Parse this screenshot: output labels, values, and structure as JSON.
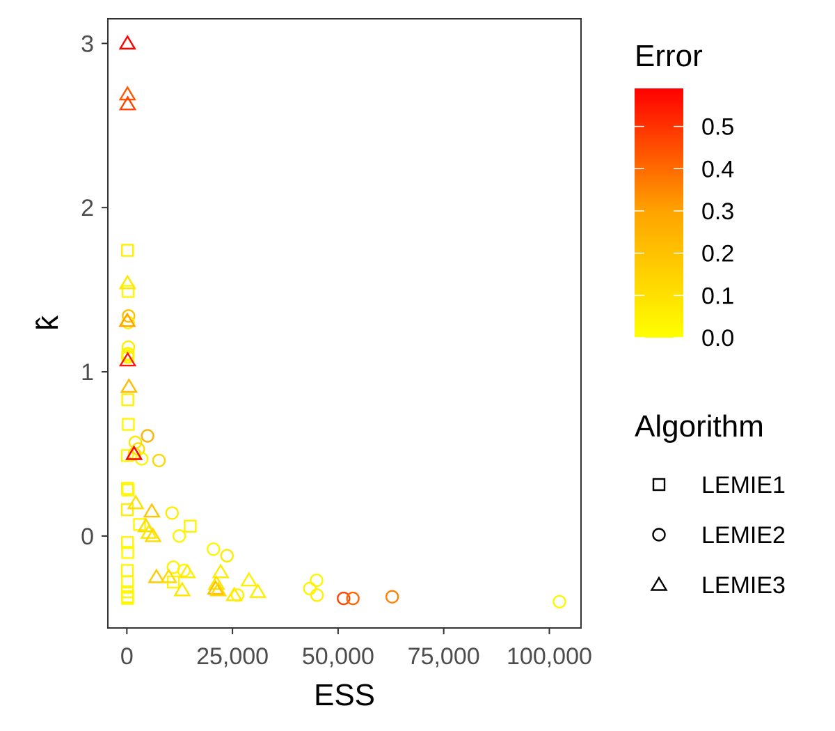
{
  "chart_data": {
    "type": "scatter",
    "xlabel": "ESS",
    "ylabel": "k̂",
    "xlim": [
      -4500,
      107500
    ],
    "ylim": [
      -0.56,
      3.15
    ],
    "x_ticks": [
      0,
      25000,
      50000,
      75000,
      100000
    ],
    "x_tick_labels": [
      "0",
      "25,000",
      "50,000",
      "75,000",
      "100,000"
    ],
    "y_ticks": [
      0,
      1,
      2,
      3
    ],
    "y_tick_labels": [
      "0",
      "1",
      "2",
      "3"
    ],
    "grid": false,
    "color_scale": {
      "title": "Error",
      "min": 0.0,
      "max": 0.59,
      "low_color": "#ffff00",
      "mid_color": "#ffa500",
      "high_color": "#ff0000",
      "ticks": [
        0.0,
        0.1,
        0.2,
        0.3,
        0.4,
        0.5
      ],
      "tick_labels": [
        "0.0",
        "0.1",
        "0.2",
        "0.3",
        "0.4",
        "0.5"
      ]
    },
    "shape_legend": {
      "title": "Algorithm",
      "items": [
        {
          "name": "LEMIE1",
          "shape": "square"
        },
        {
          "name": "LEMIE2",
          "shape": "circle"
        },
        {
          "name": "LEMIE3",
          "shape": "triangle"
        }
      ]
    },
    "series": [
      {
        "name": "LEMIE1",
        "shape": "square",
        "points": [
          {
            "x": 150,
            "y": 1.74,
            "error": 0.05
          },
          {
            "x": 300,
            "y": 1.49,
            "error": 0.03
          },
          {
            "x": 250,
            "y": 1.1,
            "error": 0.02
          },
          {
            "x": 200,
            "y": 0.83,
            "error": 0.04
          },
          {
            "x": 350,
            "y": 0.68,
            "error": 0.03
          },
          {
            "x": 100,
            "y": 0.49,
            "error": 0.02
          },
          {
            "x": 150,
            "y": 0.29,
            "error": 0.04
          },
          {
            "x": 300,
            "y": 0.28,
            "error": 0.03
          },
          {
            "x": 100,
            "y": 0.16,
            "error": 0.05
          },
          {
            "x": 3000,
            "y": 0.07,
            "error": 0.03
          },
          {
            "x": 15000,
            "y": 0.06,
            "error": 0.04
          },
          {
            "x": 150,
            "y": -0.04,
            "error": 0.03
          },
          {
            "x": 200,
            "y": -0.1,
            "error": 0.02
          },
          {
            "x": 100,
            "y": -0.21,
            "error": 0.03
          },
          {
            "x": 150,
            "y": -0.28,
            "error": 0.02
          },
          {
            "x": 11000,
            "y": -0.28,
            "error": 0.03
          },
          {
            "x": 100,
            "y": -0.34,
            "error": 0.02
          },
          {
            "x": 200,
            "y": -0.37,
            "error": 0.03
          },
          {
            "x": 150,
            "y": -0.38,
            "error": 0.02
          }
        ]
      },
      {
        "name": "LEMIE2",
        "shape": "circle",
        "points": [
          {
            "x": 400,
            "y": 1.34,
            "error": 0.21
          },
          {
            "x": 300,
            "y": 1.3,
            "error": 0.05
          },
          {
            "x": 350,
            "y": 1.15,
            "error": 0.06
          },
          {
            "x": 250,
            "y": 1.11,
            "error": 0.04
          },
          {
            "x": 200,
            "y": 1.09,
            "error": 0.05
          },
          {
            "x": 4900,
            "y": 0.61,
            "error": 0.25
          },
          {
            "x": 2000,
            "y": 0.57,
            "error": 0.08
          },
          {
            "x": 2700,
            "y": 0.53,
            "error": 0.12
          },
          {
            "x": 1800,
            "y": 0.5,
            "error": 0.1
          },
          {
            "x": 3500,
            "y": 0.47,
            "error": 0.04
          },
          {
            "x": 7600,
            "y": 0.46,
            "error": 0.13
          },
          {
            "x": 10700,
            "y": 0.14,
            "error": 0.06
          },
          {
            "x": 12400,
            "y": 0.0,
            "error": 0.04
          },
          {
            "x": 20500,
            "y": -0.08,
            "error": 0.03
          },
          {
            "x": 23700,
            "y": -0.12,
            "error": 0.07
          },
          {
            "x": 11000,
            "y": -0.19,
            "error": 0.04
          },
          {
            "x": 13500,
            "y": -0.21,
            "error": 0.03
          },
          {
            "x": 44900,
            "y": -0.27,
            "error": 0.03
          },
          {
            "x": 43300,
            "y": -0.32,
            "error": 0.04
          },
          {
            "x": 45000,
            "y": -0.36,
            "error": 0.05
          },
          {
            "x": 26200,
            "y": -0.36,
            "error": 0.04
          },
          {
            "x": 51300,
            "y": -0.38,
            "error": 0.47
          },
          {
            "x": 53500,
            "y": -0.38,
            "error": 0.41
          },
          {
            "x": 62800,
            "y": -0.37,
            "error": 0.36
          },
          {
            "x": 102400,
            "y": -0.4,
            "error": 0.03
          }
        ]
      },
      {
        "name": "LEMIE3",
        "shape": "triangle",
        "points": [
          {
            "x": 150,
            "y": 3.0,
            "error": 0.59
          },
          {
            "x": 150,
            "y": 2.69,
            "error": 0.43
          },
          {
            "x": 200,
            "y": 2.63,
            "error": 0.47
          },
          {
            "x": 150,
            "y": 1.54,
            "error": 0.08
          },
          {
            "x": 100,
            "y": 1.31,
            "error": 0.3
          },
          {
            "x": 200,
            "y": 1.07,
            "error": 0.55
          },
          {
            "x": 500,
            "y": 0.91,
            "error": 0.22
          },
          {
            "x": 1700,
            "y": 0.5,
            "error": 0.59
          },
          {
            "x": 2100,
            "y": 0.2,
            "error": 0.1
          },
          {
            "x": 5900,
            "y": 0.15,
            "error": 0.19
          },
          {
            "x": 4500,
            "y": 0.06,
            "error": 0.12
          },
          {
            "x": 5200,
            "y": 0.02,
            "error": 0.08
          },
          {
            "x": 6200,
            "y": 0.0,
            "error": 0.12
          },
          {
            "x": 7000,
            "y": -0.25,
            "error": 0.17
          },
          {
            "x": 9900,
            "y": -0.25,
            "error": 0.12
          },
          {
            "x": 14300,
            "y": -0.22,
            "error": 0.06
          },
          {
            "x": 22200,
            "y": -0.22,
            "error": 0.07
          },
          {
            "x": 21200,
            "y": -0.29,
            "error": 0.09
          },
          {
            "x": 21000,
            "y": -0.32,
            "error": 0.21
          },
          {
            "x": 28900,
            "y": -0.27,
            "error": 0.05
          },
          {
            "x": 13100,
            "y": -0.33,
            "error": 0.08
          },
          {
            "x": 21600,
            "y": -0.33,
            "error": 0.12
          },
          {
            "x": 25400,
            "y": -0.36,
            "error": 0.07
          },
          {
            "x": 31000,
            "y": -0.34,
            "error": 0.06
          }
        ]
      }
    ]
  }
}
